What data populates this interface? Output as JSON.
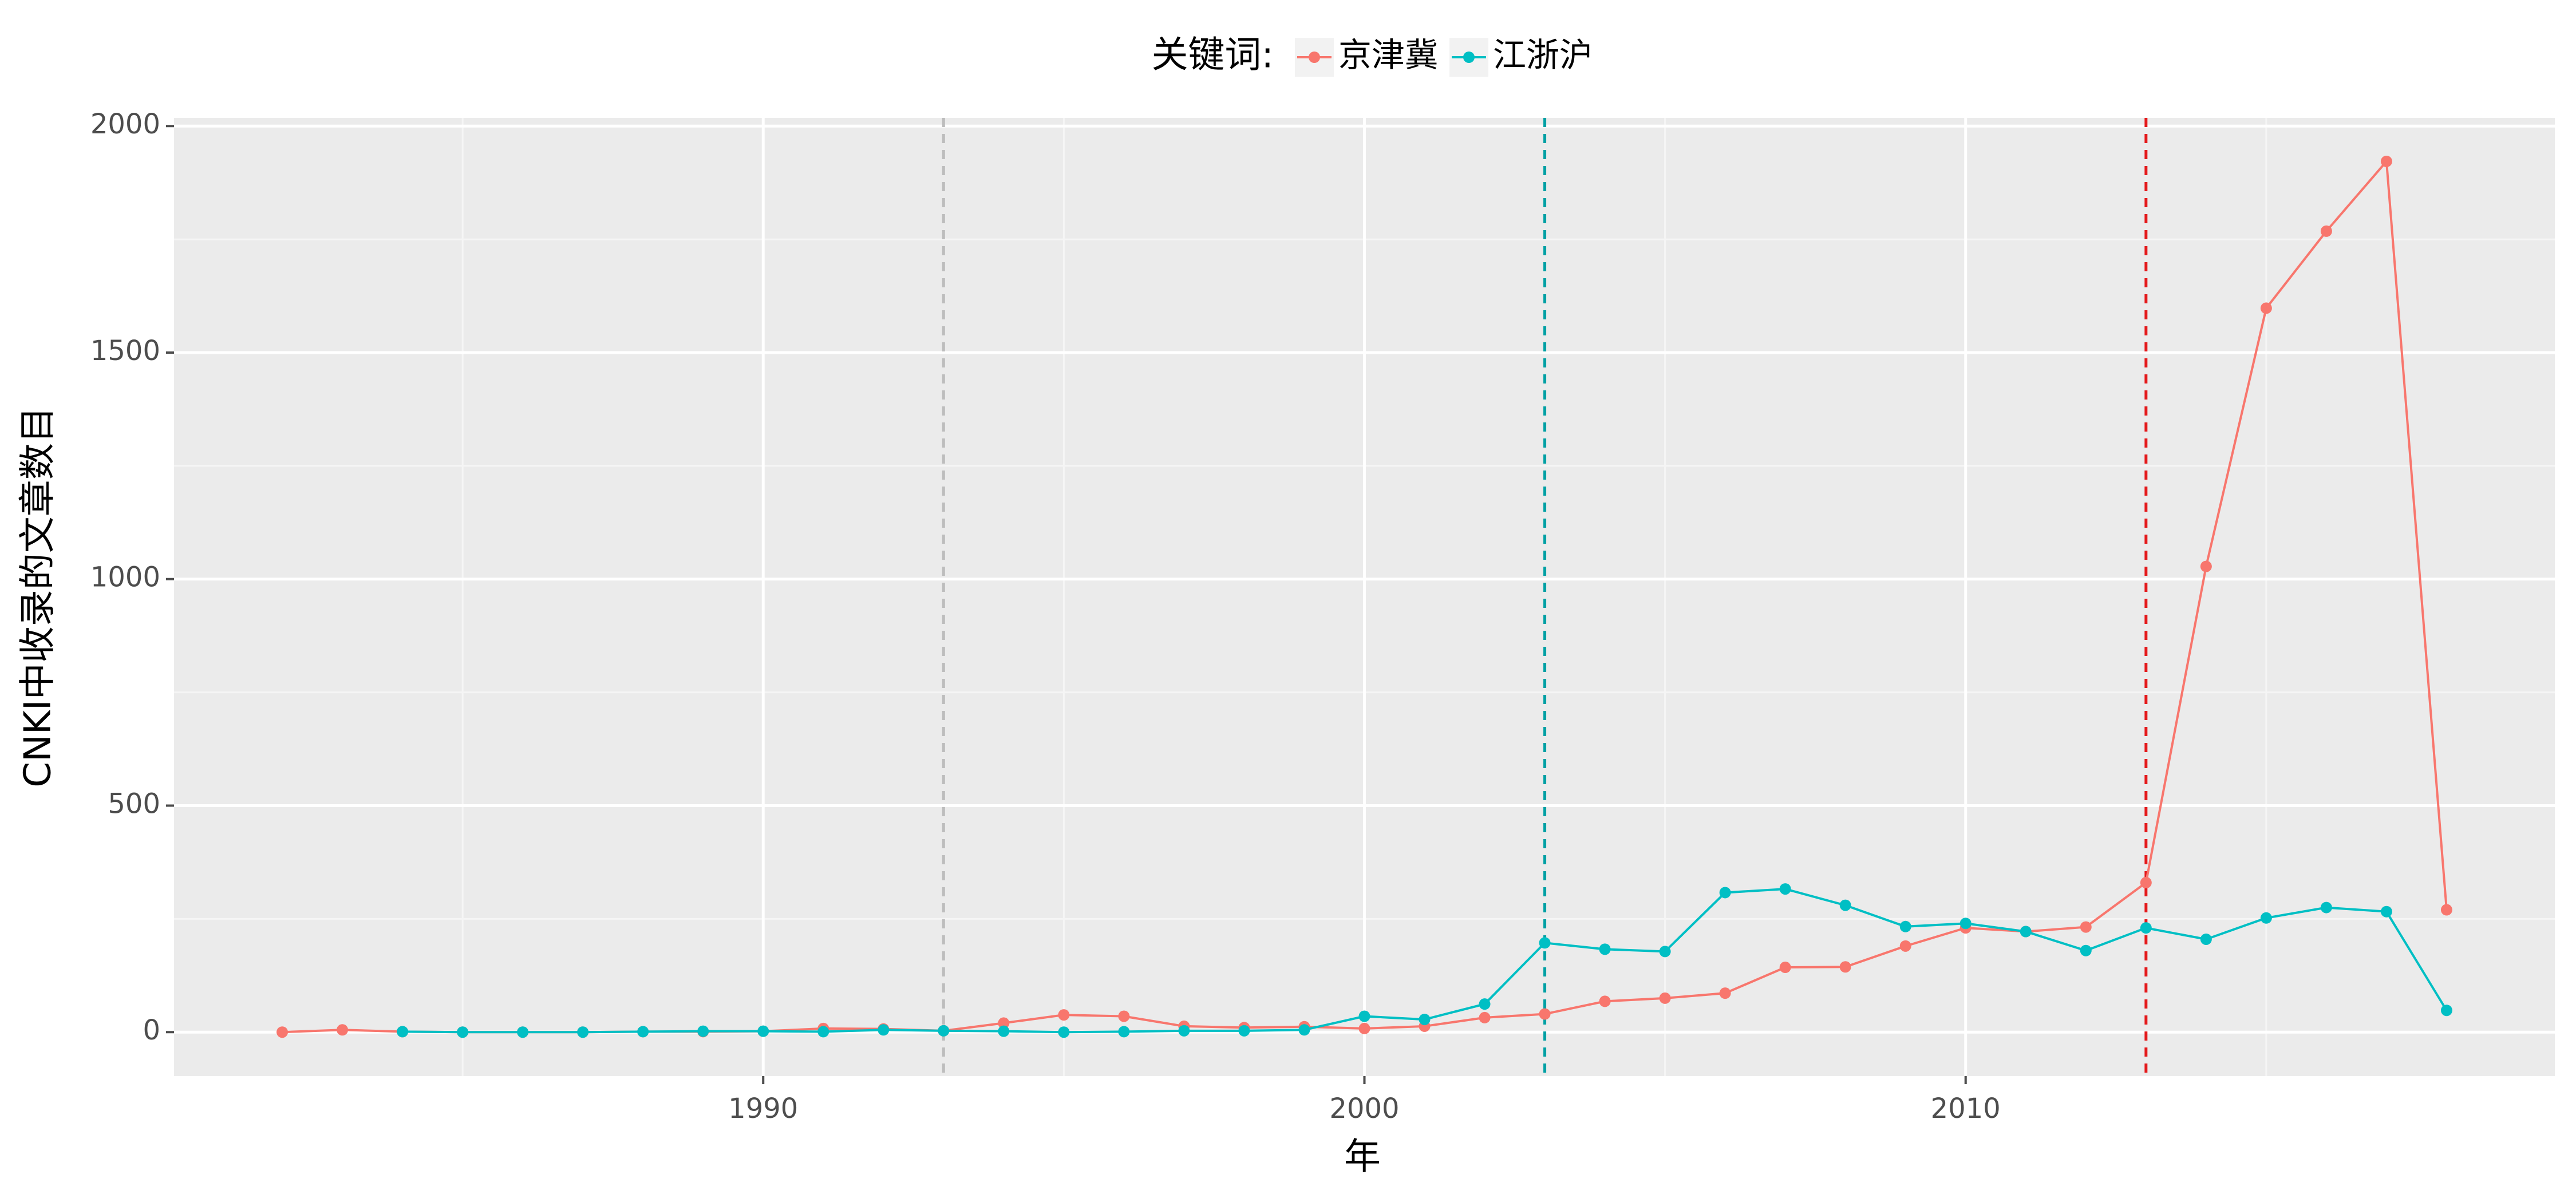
{
  "chart_data": {
    "type": "line",
    "legend_title": "关键词:",
    "x_label": "年",
    "y_label": "CNKI中收录的文章数目",
    "x": [
      1982,
      1983,
      1984,
      1985,
      1986,
      1987,
      1988,
      1989,
      1990,
      1991,
      1992,
      1993,
      1994,
      1995,
      1996,
      1997,
      1998,
      1999,
      2000,
      2001,
      2002,
      2003,
      2004,
      2005,
      2006,
      2007,
      2008,
      2009,
      2010,
      2011,
      2012,
      2013,
      2014,
      2015,
      2016,
      2017,
      2018
    ],
    "series": [
      {
        "name": "京津冀",
        "color": "#f8766d",
        "values": [
          0,
          5,
          1,
          0,
          0,
          0,
          1,
          1,
          2,
          8,
          7,
          3,
          20,
          38,
          35,
          13,
          10,
          12,
          8,
          13,
          32,
          40,
          68,
          75,
          86,
          143,
          144,
          190,
          230,
          222,
          232,
          330,
          1028,
          1598,
          1768,
          1922,
          270
        ]
      },
      {
        "name": "江浙沪",
        "color": "#00bfc4",
        "values": [
          null,
          null,
          1,
          0,
          0,
          0,
          1,
          2,
          2,
          1,
          5,
          3,
          2,
          0,
          1,
          3,
          3,
          5,
          35,
          28,
          62,
          197,
          183,
          178,
          308,
          316,
          280,
          233,
          240,
          222,
          180,
          230,
          205,
          252,
          275,
          266,
          48
        ]
      }
    ],
    "vlines": [
      {
        "x": 1993,
        "color": "#bdbdbd"
      },
      {
        "x": 2003,
        "color": "#00a0a4"
      },
      {
        "x": 2013,
        "color": "#e41a1c"
      }
    ],
    "xlim": [
      1980.2,
      2019.8
    ],
    "ylim": [
      -97,
      2018
    ],
    "xticks": [
      1990,
      2000,
      2010
    ],
    "yticks": [
      0,
      500,
      1000,
      1500,
      2000
    ],
    "minor_xticks": [
      1985,
      1995,
      2005,
      2015
    ],
    "minor_yticks": [
      250,
      750,
      1250,
      1750
    ],
    "grid": true
  }
}
